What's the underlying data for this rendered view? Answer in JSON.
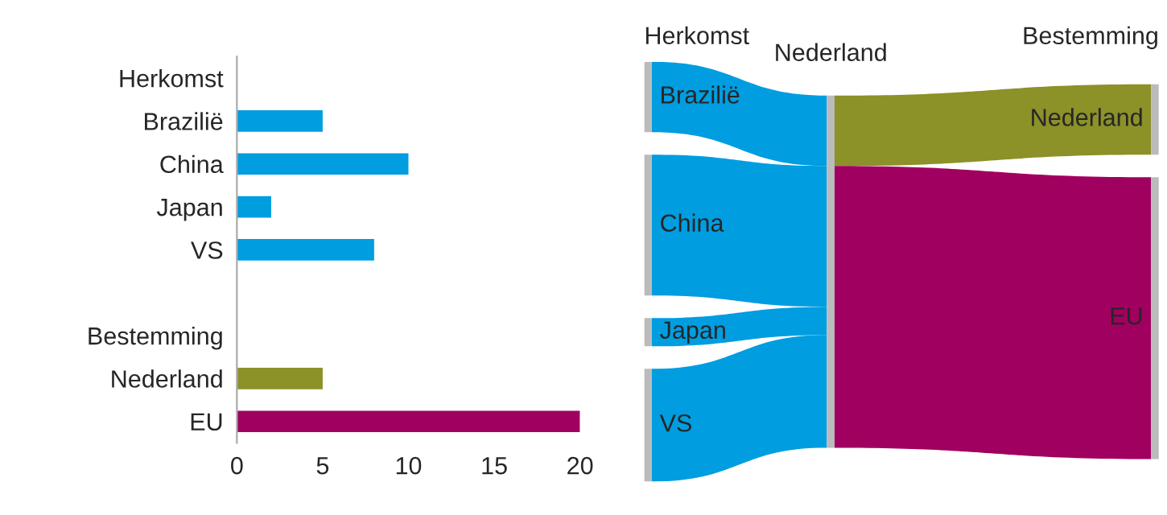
{
  "chart_data": [
    {
      "type": "bar",
      "orientation": "horizontal",
      "categories": [
        "Herkomst",
        "Brazilië",
        "China",
        "Japan",
        "VS",
        null,
        "Bestemming",
        "Nederland",
        "EU"
      ],
      "values": [
        null,
        5,
        10,
        2,
        8,
        null,
        null,
        5,
        20
      ],
      "colors": [
        "#009de0",
        "#009de0",
        "#009de0",
        "#009de0",
        "#009de0",
        "#009de0",
        "#009de0",
        "#8c9128",
        "#a0005f"
      ],
      "xlim": [
        0,
        20
      ],
      "xticks": [
        0,
        5,
        10,
        15,
        20
      ],
      "grid": false,
      "legend": false
    },
    {
      "type": "other",
      "categories": [
        "Brazilië",
        "China",
        "Japan",
        "VS",
        "Nederland",
        "EU"
      ],
      "colors": [
        "#009de0",
        "#009de0",
        "#009de0",
        "#009de0",
        "#8c9128",
        "#a0005f"
      ],
      "annotations": [
        "Herkomst",
        "Nederland",
        "Bestemming"
      ]
    }
  ]
}
